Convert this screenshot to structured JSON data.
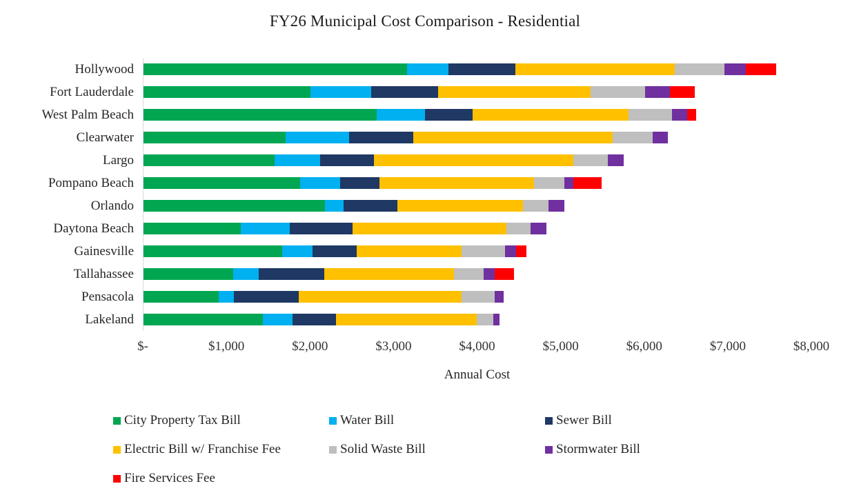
{
  "page": {
    "background": "#FFFFFF"
  },
  "chart_data": {
    "type": "bar",
    "orientation": "horizontal",
    "stacked": true,
    "title": "FY26 Municipal Cost Comparison - Residential",
    "xlabel": "Annual Cost",
    "xlim": [
      0,
      8000
    ],
    "x_tick_labels": [
      "$-",
      "$1,000",
      "$2,000",
      "$3,000",
      "$4,000",
      "$5,000",
      "$6,000",
      "$7,000",
      "$8,000"
    ],
    "grid": false,
    "legend_position": "bottom",
    "categories": [
      "Hollywood",
      "Fort Lauderdale",
      "West Palm Beach",
      "Clearwater",
      "Largo",
      "Pompano Beach",
      "Orlando",
      "Daytona Beach",
      "Gainesville",
      "Tallahassee",
      "Pensacola",
      "Lakeland"
    ],
    "series": [
      {
        "name": "City Property Tax Bill",
        "color": "#00A651",
        "values": [
          3150,
          2000,
          2790,
          1700,
          1570,
          1870,
          2170,
          1160,
          1660,
          1070,
          900,
          1430
        ]
      },
      {
        "name": "Water Bill",
        "color": "#00B0F0",
        "values": [
          500,
          725,
          580,
          760,
          540,
          480,
          225,
          590,
          360,
          310,
          180,
          355
        ]
      },
      {
        "name": "Sewer Bill",
        "color": "#1F3864",
        "values": [
          800,
          800,
          570,
          770,
          650,
          470,
          645,
          750,
          530,
          785,
          775,
          520
        ]
      },
      {
        "name": "Electric Bill w/ Franchise Fee",
        "color": "#FFC000",
        "values": [
          1910,
          1825,
          1865,
          2385,
          2385,
          1850,
          1500,
          1840,
          1260,
          1550,
          1950,
          1680
        ]
      },
      {
        "name": "Solid Waste Bill",
        "color": "#BFBFBF",
        "values": [
          590,
          650,
          520,
          480,
          410,
          370,
          310,
          290,
          520,
          355,
          400,
          200
        ]
      },
      {
        "name": "Stormwater Bill",
        "color": "#7030A0",
        "values": [
          260,
          300,
          180,
          180,
          190,
          100,
          190,
          190,
          125,
          130,
          105,
          75
        ]
      },
      {
        "name": "Fire Services Fee",
        "color": "#FF0000",
        "values": [
          360,
          300,
          110,
          0,
          0,
          340,
          0,
          0,
          125,
          230,
          0,
          0
        ]
      }
    ]
  }
}
